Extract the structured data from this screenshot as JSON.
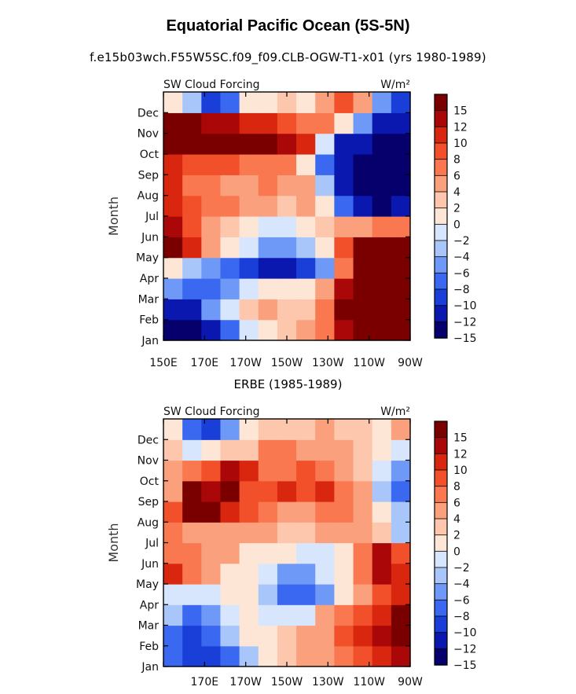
{
  "header": {
    "title": "Equatorial Pacific Ocean (5S-5N)",
    "subtitle": "f.e15b03wch.F55W5SC.f09_f09.CLB-OGW-T1-x01 (yrs 1980-1989)",
    "lower_panel_title": "ERBE (1985-1989)"
  },
  "colors": {
    "levels": [
      "#05006b",
      "#0a18b0",
      "#1a3fd9",
      "#3a68f0",
      "#6e99f6",
      "#a9c6fa",
      "#d7e6fd",
      "#fde6d6",
      "#fcc7ad",
      "#fba07c",
      "#f9784f",
      "#f2502a",
      "#d9270f",
      "#aa0808",
      "#7a0000"
    ]
  },
  "chart_data": [
    {
      "type": "heatmap",
      "panel": "model",
      "left_label": "SW Cloud Forcing",
      "right_label": "W/m²",
      "ylabel": "Month",
      "x_tick_labels": [
        "150E",
        "170E",
        "170W",
        "150W",
        "130W",
        "110W",
        "90W"
      ],
      "y_tick_labels": [
        "Jan",
        "Feb",
        "Mar",
        "Apr",
        "May",
        "Jun",
        "Jul",
        "Aug",
        "Sep",
        "Oct",
        "Nov",
        "Dec"
      ],
      "x_range": [
        "150E",
        "90W"
      ],
      "y_range": [
        "Jan",
        "Dec"
      ],
      "colorbar_labels": [
        "15",
        "12",
        "10",
        "8",
        "6",
        "4",
        "2",
        "0",
        "-2",
        "-4",
        "-6",
        "-8",
        "-10",
        "-12",
        "-15"
      ],
      "x": [
        "150E",
        "160E",
        "170E",
        "180",
        "170W",
        "160W",
        "150W",
        "140W",
        "130W",
        "120W",
        "110W",
        "100W",
        "90W"
      ],
      "y": [
        "Jan",
        "Feb",
        "Mar",
        "Apr",
        "May",
        "Jun",
        "Jul",
        "Aug",
        "Sep",
        "Oct",
        "Nov",
        "Dec"
      ],
      "values": [
        [
          -16,
          -16,
          -14,
          -9,
          -4,
          -1,
          0,
          2,
          4,
          10,
          16,
          18,
          18
        ],
        [
          -15,
          -13,
          -8,
          -3,
          1,
          2,
          1,
          1,
          4,
          12,
          18,
          18,
          18
        ],
        [
          -8,
          -10,
          -10,
          -8,
          -4,
          -2,
          -2,
          -2,
          2,
          10,
          18,
          18,
          18
        ],
        [
          -2,
          -5,
          -8,
          -10,
          -12,
          -13,
          -13,
          -12,
          -8,
          5,
          16,
          18,
          18
        ],
        [
          16,
          9,
          2,
          -1,
          -4,
          -7,
          -8,
          -6,
          -2,
          6,
          14,
          18,
          18
        ],
        [
          11,
          7,
          3,
          1,
          -1,
          -3,
          -3,
          -2,
          0,
          2,
          3,
          5,
          5
        ],
        [
          8,
          6,
          5,
          4,
          3,
          2,
          1,
          3,
          -2,
          -10,
          -14,
          -16,
          -15
        ],
        [
          8,
          5,
          4,
          3,
          3,
          4,
          3,
          2,
          -6,
          -14,
          -16,
          -16,
          -16
        ],
        [
          9,
          7,
          6,
          6,
          5,
          5,
          4,
          -2,
          -10,
          -15,
          -16,
          -16,
          -16
        ],
        [
          13,
          16,
          15,
          14,
          14,
          13,
          11,
          9,
          -4,
          -13,
          -15,
          -16,
          -16
        ],
        [
          13,
          12,
          11,
          10,
          9,
          8,
          7,
          5,
          4,
          -2,
          -8,
          -14,
          -14
        ],
        [
          -1,
          -6,
          -12,
          -10,
          -2,
          -2,
          0,
          -2,
          3,
          6,
          2,
          -8,
          -12
        ]
      ]
    },
    {
      "type": "heatmap",
      "panel": "ERBE",
      "left_label": "SW Cloud Forcing",
      "right_label": "W/m²",
      "ylabel": "Month",
      "x_tick_labels": [
        "170E",
        "170W",
        "150W",
        "130W",
        "110W",
        "90W"
      ],
      "y_tick_labels": [
        "Jan",
        "Feb",
        "Mar",
        "Apr",
        "May",
        "Jun",
        "Jul",
        "Aug",
        "Sep",
        "Oct",
        "Nov",
        "Dec"
      ],
      "x_range": [
        "150E",
        "90W"
      ],
      "y_range": [
        "Jan",
        "Dec"
      ],
      "colorbar_labels": [
        "15",
        "12",
        "10",
        "8",
        "6",
        "4",
        "2",
        "0",
        "-2",
        "-4",
        "-6",
        "-8",
        "-10",
        "-12",
        "-15"
      ],
      "x": [
        "150E",
        "160E",
        "170E",
        "180",
        "170W",
        "160W",
        "150W",
        "140W",
        "130W",
        "120W",
        "110W",
        "100W",
        "90W"
      ],
      "y": [
        "Jan",
        "Feb",
        "Mar",
        "Apr",
        "May",
        "Jun",
        "Jul",
        "Aug",
        "Sep",
        "Oct",
        "Nov",
        "Dec"
      ],
      "values": [
        [
          -10,
          -12,
          -12,
          -10,
          -6,
          -2,
          1,
          2,
          2,
          4,
          6,
          8,
          10
        ],
        [
          -10,
          -12,
          -10,
          -6,
          -2,
          -1,
          1,
          2,
          3,
          6,
          8,
          10,
          12
        ],
        [
          -6,
          -9,
          -8,
          -4,
          -2,
          -3,
          -4,
          -3,
          2,
          4,
          6,
          8,
          14
        ],
        [
          -3,
          -4,
          -3,
          -1,
          -2,
          -6,
          -9,
          -10,
          -8,
          -2,
          2,
          6,
          8
        ],
        [
          9,
          4,
          2,
          -1,
          -2,
          -4,
          -8,
          -8,
          -4,
          -2,
          4,
          10,
          9
        ],
        [
          5,
          4,
          3,
          2,
          -1,
          -2,
          -2,
          -3,
          -3,
          -2,
          4,
          10,
          6
        ],
        [
          4,
          3,
          2,
          3,
          2,
          3,
          1,
          1,
          2,
          2,
          2,
          0,
          -6
        ],
        [
          6,
          14,
          12,
          8,
          6,
          4,
          3,
          3,
          4,
          4,
          2,
          -2,
          -6
        ],
        [
          3,
          12,
          10,
          12,
          6,
          6,
          8,
          6,
          8,
          4,
          2,
          -6,
          -10
        ],
        [
          2,
          4,
          6,
          10,
          8,
          4,
          4,
          6,
          4,
          2,
          0,
          -4,
          -8
        ],
        [
          0,
          -4,
          -2,
          1,
          1,
          4,
          4,
          2,
          2,
          2,
          0,
          -2,
          -4
        ],
        [
          -2,
          -10,
          -12,
          -8,
          -2,
          0,
          1,
          1,
          2,
          1,
          1,
          -2,
          2
        ]
      ]
    }
  ]
}
